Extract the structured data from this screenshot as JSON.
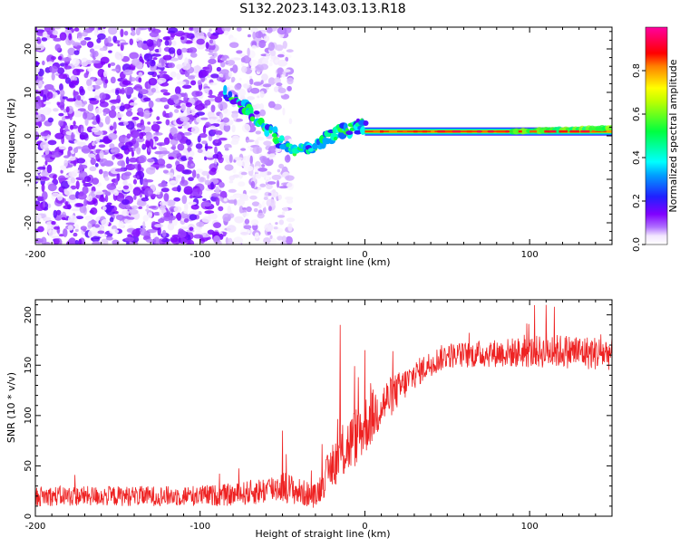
{
  "figure_title": "S132.2023.143.03.13.R18",
  "colors": {
    "snr_line": "#ee2222",
    "background": "#ffffff",
    "axis": "#000000"
  },
  "chart_data": [
    {
      "type": "heatmap",
      "title": "",
      "xlabel": "Height of straight line (km)",
      "ylabel": "Frequency (Hz)",
      "xlim": [
        -200,
        150
      ],
      "ylim": [
        -25,
        25
      ],
      "xticks": [
        -200,
        -100,
        0,
        100
      ],
      "yticks": [
        -20,
        -10,
        0,
        10,
        20
      ],
      "colorbar": {
        "label": "Normalized spectral amplitude",
        "range": [
          0,
          1
        ],
        "ticks": [
          0.0,
          0.2,
          0.4,
          0.6,
          0.8
        ],
        "colormap": "rainbow (white-purple-blue-cyan-green-yellow-red-magenta)"
      },
      "features": [
        {
          "description": "scattered low-amplitude noise",
          "x_range": [
            -200,
            -85
          ],
          "f_range": [
            -25,
            25
          ],
          "amplitude": 0.1
        },
        {
          "description": "sparse noise",
          "x_range": [
            -85,
            -45
          ],
          "f_range": [
            -25,
            25
          ],
          "amplitude": 0.05
        },
        {
          "description": "descending signal track",
          "points": [
            [
              -85,
              10
            ],
            [
              -75,
              7
            ],
            [
              -65,
              4
            ],
            [
              -55,
              0
            ],
            [
              -45,
              -3
            ],
            [
              -35,
              -3
            ],
            [
              -25,
              -1
            ],
            [
              -15,
              1
            ],
            [
              -5,
              2
            ],
            [
              0,
              2
            ]
          ],
          "amplitude": 0.3
        },
        {
          "description": "steady carrier line",
          "x_range": [
            0,
            150
          ],
          "f": 1,
          "amplitude": 0.95
        }
      ]
    },
    {
      "type": "line",
      "title": "",
      "xlabel": "Height of straight line (km)",
      "ylabel": "SNR (10 * v/v)",
      "xlim": [
        -200,
        150
      ],
      "ylim": [
        0,
        215
      ],
      "xticks": [
        -200,
        -100,
        0,
        100
      ],
      "yticks": [
        0,
        50,
        100,
        150,
        200
      ],
      "series": [
        {
          "trend_x": [
            -200,
            -120,
            -80,
            -60,
            -50,
            -40,
            -30,
            -20,
            -10,
            0,
            10,
            20,
            30,
            40,
            50,
            60,
            80,
            100,
            120,
            140,
            150
          ],
          "trend_y": [
            20,
            20,
            21,
            26,
            30,
            24,
            20,
            50,
            70,
            90,
            110,
            125,
            140,
            152,
            160,
            160,
            162,
            163,
            164,
            162,
            162
          ],
          "noise_amplitude": [
            10,
            10,
            11,
            14,
            16,
            14,
            12,
            22,
            30,
            30,
            24,
            18,
            14,
            13,
            13,
            13,
            14,
            16,
            17,
            17,
            17
          ],
          "spikes": [
            [
              -15,
              190
            ],
            [
              -50,
              85
            ],
            [
              0,
              165
            ],
            [
              110,
              210
            ],
            [
              115,
              208
            ]
          ]
        }
      ]
    }
  ]
}
